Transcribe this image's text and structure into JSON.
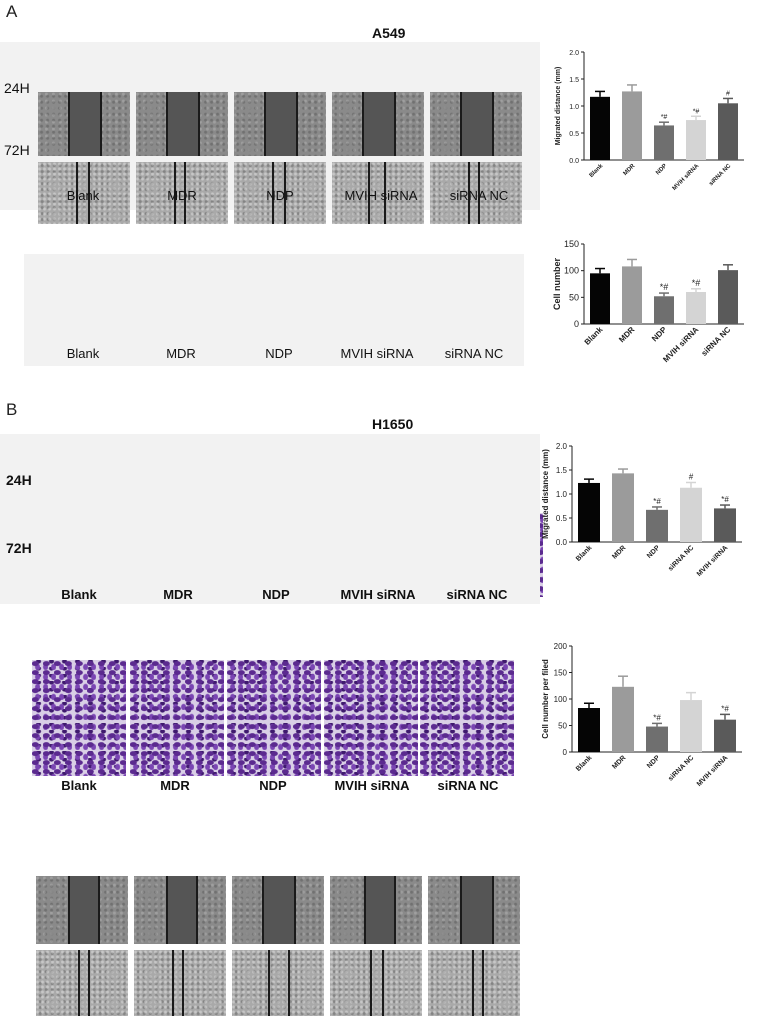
{
  "panels": {
    "a": {
      "letter": "A",
      "cell_line": "A549",
      "row_labels": [
        "24H",
        "72H"
      ]
    },
    "b": {
      "letter": "B",
      "cell_line": "H1650",
      "row_labels": [
        "24H",
        "72H"
      ]
    }
  },
  "groups_images": [
    "Blank",
    "MDR",
    "NDP",
    "MVIH siRNA",
    "siRNA NC"
  ],
  "colors": {
    "black": "#050505",
    "gray1": "#9b9b9b",
    "gray2": "#6f6f6f",
    "gray3": "#d4d4d4",
    "gray4": "#5a5a5a"
  },
  "chart_data": [
    {
      "id": "a_migration",
      "type": "bar",
      "categories": [
        "Blank",
        "MDR",
        "NDP",
        "MVIH siRNA",
        "siRNA NC"
      ],
      "values": [
        1.17,
        1.27,
        0.64,
        0.74,
        1.05
      ],
      "errors": [
        0.1,
        0.12,
        0.06,
        0.07,
        0.09
      ],
      "annotations": [
        "",
        "",
        "*#",
        "*#",
        "#"
      ],
      "ylabel": "Migrated distance (mm)",
      "ylim": [
        0,
        2.0
      ],
      "yticks": [
        "0.0",
        "0.5",
        "1.0",
        "1.5",
        "2.0"
      ],
      "colors": [
        "#050505",
        "#9b9b9b",
        "#6f6f6f",
        "#d4d4d4",
        "#5a5a5a"
      ]
    },
    {
      "id": "a_invasion",
      "type": "bar",
      "categories": [
        "Blank",
        "MDR",
        "NDP",
        "MVIH siRNA",
        "siRNA NC"
      ],
      "values": [
        95,
        108,
        52,
        60,
        101
      ],
      "errors": [
        9,
        13,
        6,
        6,
        10
      ],
      "annotations": [
        "",
        "",
        "*#",
        "*#",
        ""
      ],
      "ylabel": "Cell number",
      "ylim": [
        0,
        150
      ],
      "yticks": [
        "0",
        "50",
        "100",
        "150"
      ],
      "colors": [
        "#050505",
        "#9b9b9b",
        "#6f6f6f",
        "#d4d4d4",
        "#5a5a5a"
      ]
    },
    {
      "id": "b_migration",
      "type": "bar",
      "categories": [
        "Blank",
        "MDR",
        "NDP",
        "siRNA NC",
        "MVIH siRNA"
      ],
      "values": [
        1.23,
        1.43,
        0.67,
        1.13,
        0.7
      ],
      "errors": [
        0.08,
        0.09,
        0.06,
        0.11,
        0.07
      ],
      "annotations": [
        "",
        "",
        "*#",
        "#",
        "*#"
      ],
      "ylabel": "Migrated distance (mm)",
      "ylim": [
        0,
        2.0
      ],
      "yticks": [
        "0.0",
        "0.5",
        "1.0",
        "1.5",
        "2.0"
      ],
      "colors": [
        "#050505",
        "#9b9b9b",
        "#6f6f6f",
        "#d4d4d4",
        "#5a5a5a"
      ]
    },
    {
      "id": "b_invasion",
      "type": "bar",
      "categories": [
        "Blank",
        "MDR",
        "NDP",
        "siRNA NC",
        "MVIH siRNA"
      ],
      "values": [
        83,
        123,
        48,
        98,
        61
      ],
      "errors": [
        9,
        20,
        6,
        14,
        10
      ],
      "annotations": [
        "",
        "",
        "*#",
        "",
        "*#"
      ],
      "ylabel": "Cell number per filed",
      "ylim": [
        0,
        200
      ],
      "yticks": [
        "0",
        "50",
        "100",
        "150",
        "200"
      ],
      "colors": [
        "#050505",
        "#9b9b9b",
        "#6f6f6f",
        "#d4d4d4",
        "#5a5a5a"
      ]
    }
  ]
}
